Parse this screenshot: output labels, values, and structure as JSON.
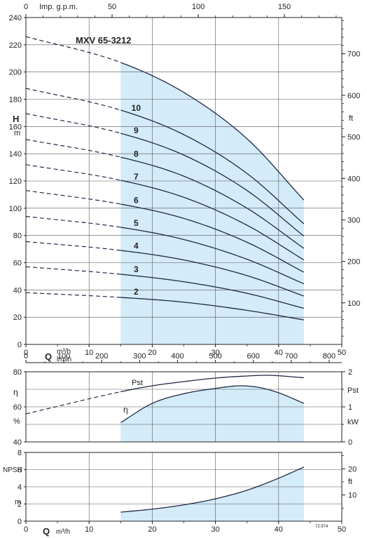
{
  "chart_data": [
    {
      "type": "line",
      "panel": "head",
      "title": "MXV 65-3212",
      "top_axis": {
        "label": "Imp. g.p.m.",
        "ticks": [
          0,
          50,
          100,
          150
        ]
      },
      "x_axis": {
        "unit_main": "Q",
        "unit_a": "m³/h",
        "unit_b": "l/min",
        "ticks": [
          0,
          10,
          20,
          30,
          40,
          50
        ],
        "lmin_ticks": [
          0,
          100,
          200,
          300,
          400,
          500,
          600,
          700,
          800
        ],
        "range": [
          0,
          50
        ]
      },
      "y_axis": {
        "label": "H",
        "unit": "m",
        "ticks": [
          0,
          20,
          40,
          60,
          80,
          100,
          120,
          140,
          160,
          180,
          200,
          220,
          240
        ],
        "range": [
          0,
          240
        ]
      },
      "right_axis": {
        "unit": "ft",
        "ticks": [
          100,
          200,
          300,
          400,
          500,
          600,
          700
        ]
      },
      "operating_range_q": [
        15,
        44
      ],
      "series": [
        {
          "name": "2",
          "q": [
            0,
            15,
            25,
            35,
            44
          ],
          "h": [
            38,
            34.5,
            31,
            25,
            18
          ]
        },
        {
          "name": "3",
          "q": [
            0,
            15,
            25,
            35,
            44
          ],
          "h": [
            57,
            51.5,
            46,
            37.5,
            26.5
          ]
        },
        {
          "name": "4",
          "q": [
            0,
            15,
            25,
            35,
            44
          ],
          "h": [
            75.5,
            69,
            62,
            50.5,
            35.5
          ]
        },
        {
          "name": "5",
          "q": [
            0,
            15,
            25,
            35,
            44
          ],
          "h": [
            94,
            86,
            77,
            62.5,
            44.5
          ]
        },
        {
          "name": "6",
          "q": [
            0,
            15,
            25,
            35,
            44
          ],
          "h": [
            113,
            103,
            92.5,
            75,
            53
          ]
        },
        {
          "name": "7",
          "q": [
            0,
            15,
            25,
            35,
            44
          ],
          "h": [
            132,
            120.5,
            108,
            87.5,
            62
          ]
        },
        {
          "name": "8",
          "q": [
            0,
            15,
            25,
            35,
            44
          ],
          "h": [
            150.5,
            137.5,
            123.5,
            100,
            70.5
          ]
        },
        {
          "name": "9",
          "q": [
            0,
            15,
            25,
            35,
            44
          ],
          "h": [
            169.5,
            155,
            139,
            113,
            79.5
          ]
        },
        {
          "name": "10",
          "q": [
            0,
            15,
            25,
            35,
            44
          ],
          "h": [
            188,
            172,
            154,
            125.5,
            88.5
          ]
        },
        {
          "name": "",
          "q": [
            0,
            15,
            25,
            35,
            44
          ],
          "h": [
            226,
            207,
            185,
            151,
            106
          ]
        }
      ],
      "labels_q": 17
    },
    {
      "type": "line",
      "panel": "efficiency",
      "y_axis": {
        "label": "η",
        "unit": "%",
        "ticks": [
          40,
          60,
          80
        ],
        "range": [
          40,
          80
        ]
      },
      "right_axis": {
        "label": "Pst",
        "unit": "kW",
        "ticks": [
          0,
          1,
          2
        ],
        "range": [
          0,
          2
        ]
      },
      "series": [
        {
          "name": "Pst",
          "axis": "right",
          "q": [
            0,
            15,
            20,
            25,
            30,
            35,
            38,
            44
          ],
          "v": [
            0.8,
            1.43,
            1.6,
            1.72,
            1.82,
            1.88,
            1.9,
            1.83
          ]
        },
        {
          "name": "η",
          "axis": "left",
          "q": [
            15,
            20,
            25,
            30,
            34,
            37,
            40,
            44
          ],
          "v": [
            51,
            62,
            67.5,
            70.5,
            72,
            71,
            68,
            62
          ]
        }
      ]
    },
    {
      "type": "line",
      "panel": "npsh",
      "x_axis": {
        "unit_main": "Q",
        "unit_a": "m³/h",
        "ticks": [
          0,
          10,
          20,
          30,
          40,
          50
        ],
        "range": [
          0,
          50
        ]
      },
      "y_axis": {
        "label": "NPSH",
        "unit": "m",
        "ticks": [
          0,
          2,
          4,
          6,
          8
        ],
        "range": [
          0,
          8
        ]
      },
      "right_axis": {
        "unit": "ft",
        "ticks": [
          10,
          20
        ]
      },
      "series": [
        {
          "name": "",
          "q": [
            15,
            20,
            25,
            30,
            35,
            40,
            44
          ],
          "v": [
            1.05,
            1.4,
            1.9,
            2.6,
            3.6,
            5.0,
            6.3
          ]
        }
      ]
    }
  ],
  "footnote": "72.974"
}
